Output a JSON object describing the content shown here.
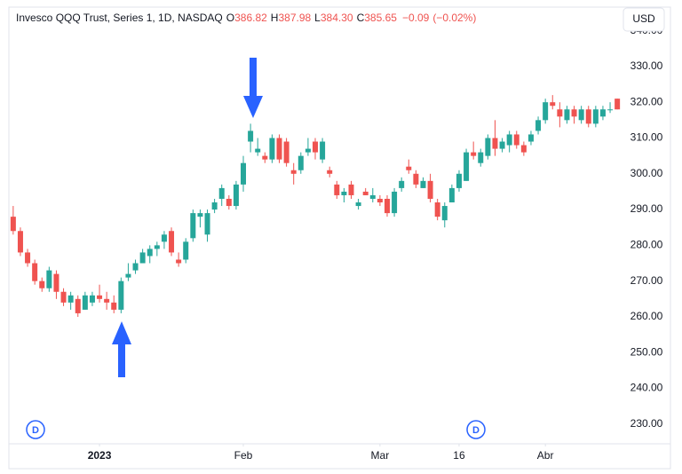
{
  "header": {
    "symbol": "Invesco QQQ Trust, Series 1, 1D, NASDAQ",
    "open_label": "O",
    "open": "386.82",
    "high_label": "H",
    "high": "387.98",
    "low_label": "L",
    "low": "384.30",
    "close_label": "C",
    "close": "385.65",
    "change": "−0.09",
    "change_pct": "(−0.02%)",
    "currency": "USD"
  },
  "markers": [
    "D",
    "D"
  ],
  "chart_data": {
    "type": "candlestick",
    "up_color": "#26a69a",
    "down_color": "#ef5350",
    "ylim": [
      225,
      346.6
    ],
    "xlim": [
      -0.6,
      84.6
    ],
    "yticks": [
      {
        "value": 230,
        "label": "230.00"
      },
      {
        "value": 240,
        "label": "240.00"
      },
      {
        "value": 250,
        "label": "250.00"
      },
      {
        "value": 260,
        "label": "260.00"
      },
      {
        "value": 270,
        "label": "270.00"
      },
      {
        "value": 280,
        "label": "280.00"
      },
      {
        "value": 290,
        "label": "290.00"
      },
      {
        "value": 300,
        "label": "300.00"
      },
      {
        "value": 310,
        "label": "310.00"
      },
      {
        "value": 320,
        "label": "320.00"
      },
      {
        "value": 330,
        "label": "330.00"
      },
      {
        "value": 340,
        "label": "340.00"
      }
    ],
    "xticks": [
      {
        "value": 12,
        "label": "2023"
      },
      {
        "value": 32,
        "label": "Feb"
      },
      {
        "value": 51,
        "label": "Mar"
      },
      {
        "value": 62,
        "label": "16"
      },
      {
        "value": 74,
        "label": "Abr"
      }
    ],
    "open": [
      288,
      284,
      278,
      275,
      270,
      268,
      272,
      267,
      264,
      265,
      262,
      264,
      266,
      265,
      264,
      262,
      271,
      273,
      275,
      277,
      279,
      281,
      284,
      276,
      276,
      282,
      288,
      283,
      290,
      293,
      293,
      291,
      297,
      309,
      306,
      305,
      304,
      310,
      309,
      301,
      301,
      306,
      309,
      304,
      301,
      297,
      294,
      297,
      291,
      295,
      293,
      293,
      293,
      289,
      296,
      302,
      300,
      296,
      298,
      292,
      287,
      292,
      296,
      298,
      306,
      303,
      305,
      310,
      307,
      308,
      311,
      308,
      309,
      312,
      315,
      320,
      318,
      315,
      318,
      315,
      318,
      314,
      316,
      318,
      321
    ],
    "high": [
      291,
      285,
      279,
      276,
      271,
      274,
      273,
      268,
      267,
      266,
      267,
      267,
      269,
      267,
      266,
      271,
      275,
      276,
      279,
      280,
      281,
      284,
      285,
      278,
      282,
      290,
      290,
      290,
      293,
      297,
      294,
      298,
      305,
      314,
      310,
      306,
      311,
      311,
      310,
      303,
      306,
      310,
      310,
      310,
      302,
      298,
      296,
      298,
      293,
      296,
      296,
      294,
      294,
      296,
      299,
      304,
      301,
      299,
      300,
      293,
      292,
      297,
      301,
      307,
      309,
      307,
      311,
      315,
      310,
      312,
      312,
      309,
      312,
      316,
      321,
      322,
      320,
      319,
      319,
      319,
      319,
      319,
      319,
      320,
      321
    ],
    "low": [
      283,
      277,
      274,
      269,
      267,
      267,
      265,
      263,
      262,
      260,
      262,
      263,
      264,
      262,
      261,
      261,
      270,
      272,
      275,
      275,
      277,
      279,
      277,
      274,
      275,
      281,
      285,
      281,
      289,
      291,
      290,
      290,
      295,
      306,
      305,
      303,
      303,
      303,
      302,
      297,
      300,
      305,
      304,
      303,
      299,
      293,
      292,
      293,
      290,
      294,
      292,
      291,
      288,
      288,
      295,
      300,
      296,
      296,
      292,
      287,
      285,
      292,
      295,
      298,
      304,
      302,
      304,
      305,
      306,
      306,
      307,
      305,
      308,
      311,
      314,
      318,
      313,
      314,
      314,
      314,
      313,
      313,
      315,
      317,
      318
    ],
    "close": [
      284,
      278,
      275,
      270,
      268,
      273,
      267,
      264,
      266,
      261,
      266,
      266,
      265,
      264,
      262,
      270,
      272,
      275,
      278,
      279,
      280,
      283,
      278,
      275,
      281,
      289,
      289,
      289,
      292,
      296,
      291,
      297,
      303,
      312,
      307,
      304,
      310,
      304,
      303,
      300,
      305,
      307,
      306,
      309,
      300,
      294,
      295,
      294,
      292,
      294,
      294,
      292,
      289,
      295,
      298,
      301,
      297,
      298,
      293,
      288,
      291,
      296,
      300,
      306,
      305,
      306,
      310,
      307,
      309,
      311,
      308,
      306,
      311,
      315,
      320,
      319,
      316,
      318,
      316,
      318,
      314,
      318,
      318,
      318,
      318
    ]
  }
}
